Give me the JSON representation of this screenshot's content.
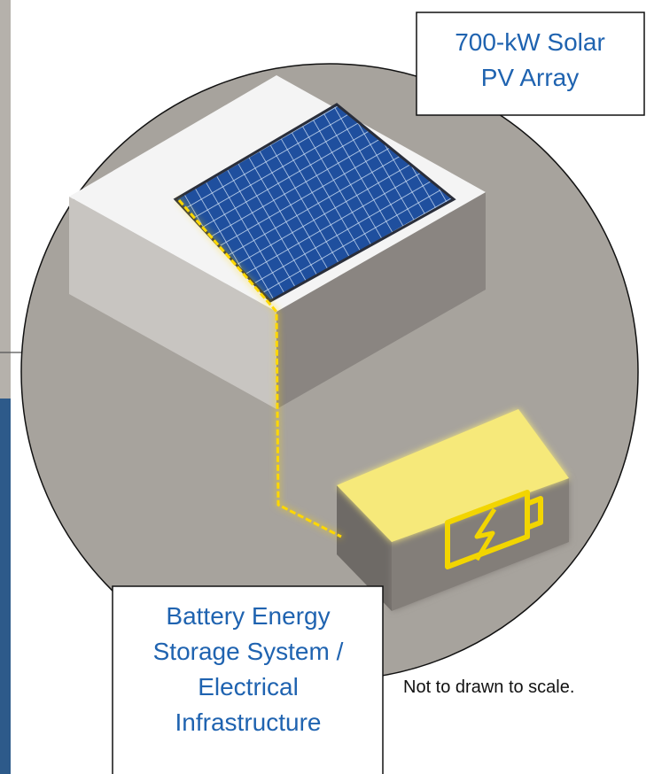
{
  "solar_label": {
    "lines": [
      "700-kW Solar",
      "PV Array"
    ]
  },
  "battery_label": {
    "lines": [
      "Battery Energy",
      "Storage System /",
      "Electrical",
      "Infrastructure"
    ]
  },
  "note": "Not to drawn to scale."
}
